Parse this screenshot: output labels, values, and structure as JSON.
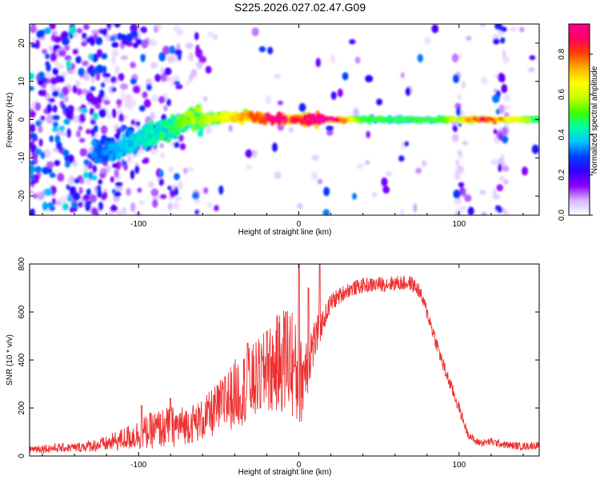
{
  "title": "S225.2026.027.02.47.G09",
  "chart_data": [
    {
      "type": "heatmap",
      "xlabel": "Height of straight line (km)",
      "ylabel": "Frequency (Hz)",
      "xlim": [
        -168,
        150
      ],
      "ylim": [
        -25,
        25
      ],
      "xticks": [
        -100,
        0,
        100
      ],
      "xtick_labels": [
        "-100",
        "0",
        "100"
      ],
      "yticks": [
        -20,
        -10,
        0,
        10,
        20
      ],
      "ytick_labels": [
        "-20",
        "-10",
        "0",
        "10",
        "20"
      ],
      "colorbar": {
        "label": "Normalized spectral amplitude",
        "range": [
          0,
          0.95
        ],
        "ticks": [
          0.0,
          0.2,
          0.4,
          0.6,
          0.8
        ],
        "tick_labels": [
          "0.0",
          "0.2",
          "0.4",
          "0.6",
          "0.8"
        ],
        "colormap": [
          "#ffffff",
          "#d9b8ff",
          "#8a00ff",
          "#3000ff",
          "#0040ff",
          "#00c8ff",
          "#00ffa0",
          "#40ff00",
          "#c8ff00",
          "#ffff00",
          "#ffb000",
          "#ff4000",
          "#ff0060",
          "#ff0090"
        ]
      },
      "ridge": [
        {
          "x": -120,
          "y": -8,
          "a": 0.3
        },
        {
          "x": -105,
          "y": -6,
          "a": 0.35
        },
        {
          "x": -90,
          "y": -4,
          "a": 0.4
        },
        {
          "x": -80,
          "y": -2,
          "a": 0.45
        },
        {
          "x": -70,
          "y": 0,
          "a": 0.5
        },
        {
          "x": -50,
          "y": 0.5,
          "a": 0.55
        },
        {
          "x": -30,
          "y": 1,
          "a": 0.7
        },
        {
          "x": -15,
          "y": 0,
          "a": 0.85
        },
        {
          "x": 0,
          "y": 0,
          "a": 0.75
        },
        {
          "x": 15,
          "y": 0,
          "a": 0.95
        },
        {
          "x": 40,
          "y": 0,
          "a": 0.45
        },
        {
          "x": 90,
          "y": 0,
          "a": 0.45
        },
        {
          "x": 115,
          "y": 0,
          "a": 0.8
        },
        {
          "x": 150,
          "y": 0,
          "a": 0.45
        }
      ]
    },
    {
      "type": "line",
      "xlabel": "Height of straight line (km)",
      "ylabel": "SNR (10 * v/v)",
      "xlim": [
        -168,
        150
      ],
      "ylim": [
        0,
        800
      ],
      "xticks": [
        -100,
        0,
        100
      ],
      "xtick_labels": [
        "-100",
        "0",
        "100"
      ],
      "yticks": [
        0,
        200,
        400,
        600,
        800
      ],
      "ytick_labels": [
        "0",
        "200",
        "400",
        "600",
        "800"
      ],
      "color": "#ee3030",
      "series": [
        {
          "name": "SNR",
          "x": [
            -168,
            -140,
            -120,
            -110,
            -100,
            -90,
            -80,
            -70,
            -60,
            -50,
            -40,
            -30,
            -20,
            -10,
            -5,
            0,
            5,
            10,
            15,
            20,
            30,
            40,
            50,
            60,
            70,
            75,
            80,
            90,
            100,
            105,
            110,
            115,
            120,
            130,
            140,
            150
          ],
          "y": [
            30,
            35,
            50,
            70,
            90,
            110,
            120,
            130,
            150,
            200,
            260,
            300,
            350,
            400,
            420,
            280,
            400,
            480,
            560,
            640,
            690,
            710,
            715,
            720,
            720,
            690,
            600,
            380,
            200,
            100,
            60,
            55,
            60,
            45,
            40,
            45
          ],
          "noise": [
            12,
            12,
            20,
            30,
            40,
            50,
            55,
            50,
            55,
            70,
            90,
            100,
            110,
            140,
            160,
            120,
            100,
            60,
            30,
            25,
            20,
            20,
            20,
            20,
            20,
            20,
            20,
            20,
            15,
            12,
            10,
            10,
            10,
            10,
            10,
            10
          ]
        }
      ],
      "spikes": [
        {
          "x": -98,
          "y": 210
        },
        {
          "x": -80,
          "y": 240
        },
        {
          "x": -66,
          "y": 185
        },
        {
          "x": -46,
          "y": 330
        },
        {
          "x": -32,
          "y": 470
        },
        {
          "x": -20,
          "y": 520
        },
        {
          "x": -8,
          "y": 600
        },
        {
          "x": 0,
          "y": 800
        },
        {
          "x": 6,
          "y": 700
        },
        {
          "x": 13,
          "y": 800
        }
      ]
    }
  ]
}
